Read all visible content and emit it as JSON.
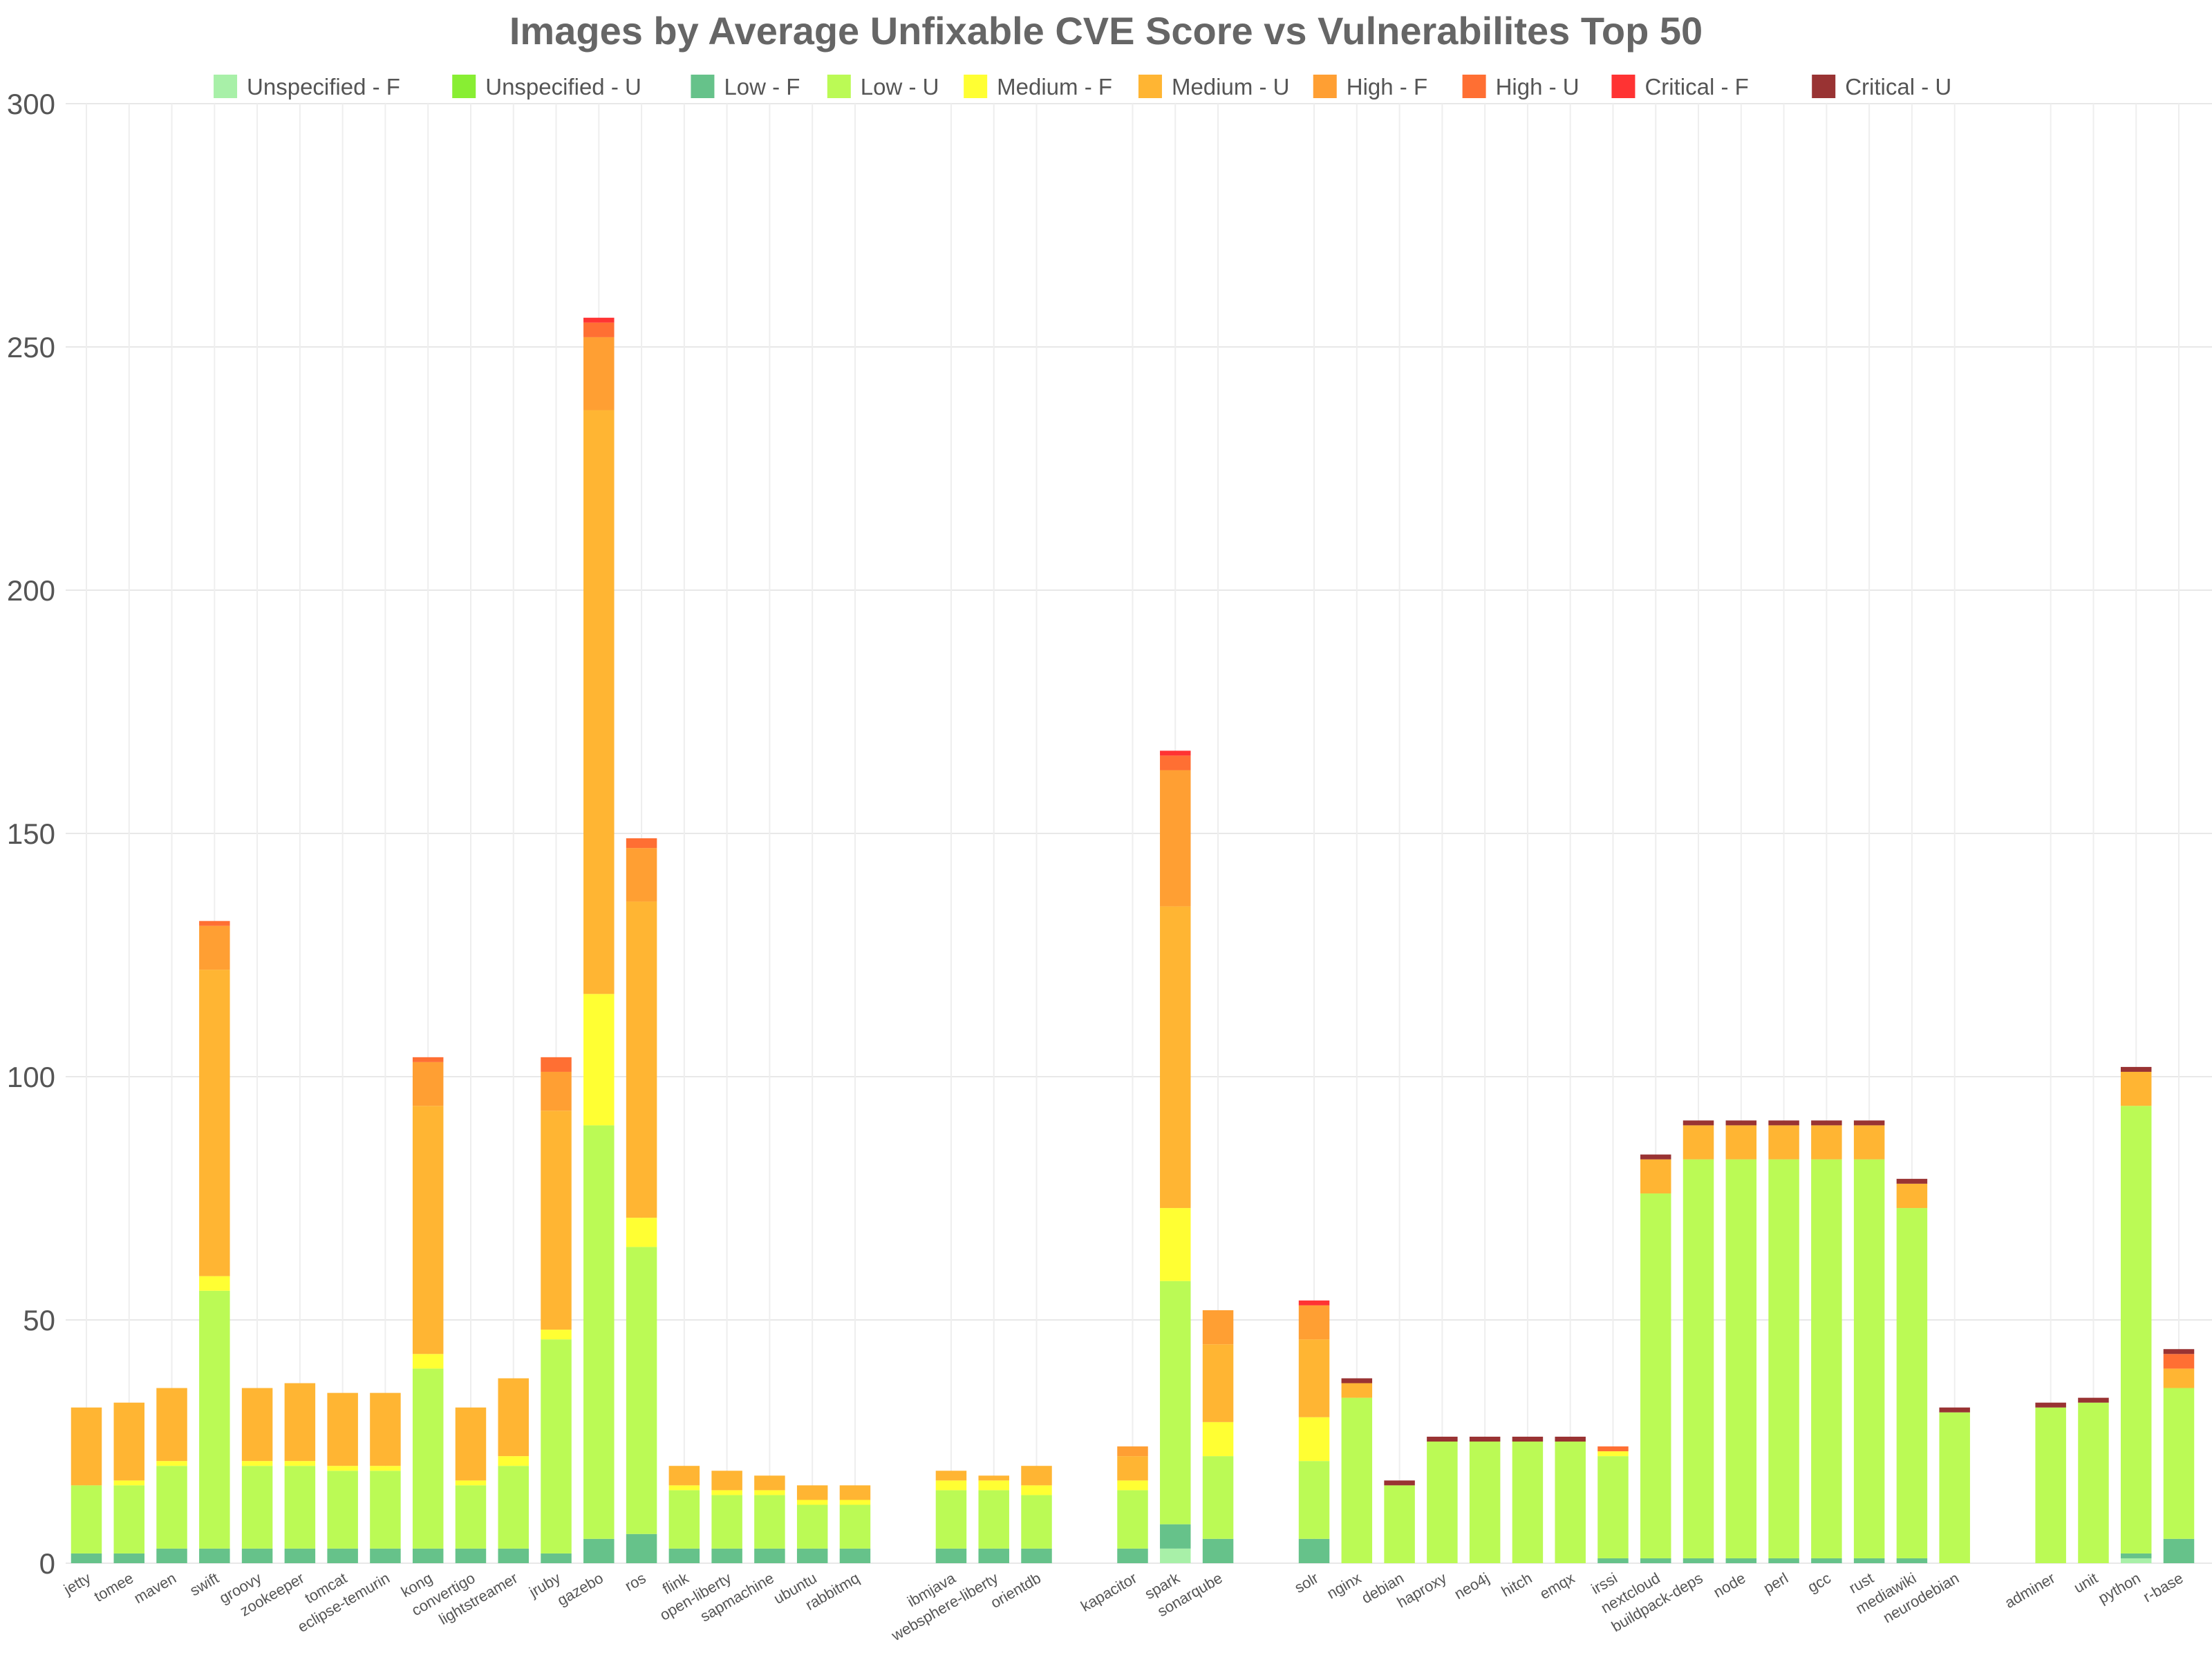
{
  "chart_data": {
    "type": "bar",
    "stacked": true,
    "title": "Images by Average Unfixable CVE Score vs Vulnerabilites Top 50",
    "xlabel": "",
    "ylabel": "",
    "ylim": [
      0,
      300
    ],
    "yticks": [
      0,
      50,
      100,
      150,
      200,
      250,
      300
    ],
    "grid": true,
    "legend_position": "top",
    "series_meta": [
      {
        "name": "Unspecified - F",
        "color": "#a8f0a8"
      },
      {
        "name": "Unspecified - U",
        "color": "#88ee33"
      },
      {
        "name": "Low - F",
        "color": "#66c28a"
      },
      {
        "name": "Low - U",
        "color": "#bbfa55"
      },
      {
        "name": "Medium - F",
        "color": "#ffff33"
      },
      {
        "name": "Medium - U",
        "color": "#ffb533"
      },
      {
        "name": "High - F",
        "color": "#ff9f33"
      },
      {
        "name": "High - U",
        "color": "#ff6f33"
      },
      {
        "name": "Critical - F",
        "color": "#ff3333"
      },
      {
        "name": "Critical - U",
        "color": "#993333"
      }
    ],
    "groups": [
      {
        "categories": [
          "jetty",
          "tomee",
          "maven",
          "swift",
          "groovy",
          "zookeeper",
          "tomcat",
          "eclipse-temurin",
          "kong",
          "convertigo",
          "lightstreamer",
          "jruby",
          "gazebo",
          "ros",
          "flink",
          "open-liberty",
          "sapmachine",
          "ubuntu",
          "rabbitmq"
        ]
      },
      {
        "categories": [
          "ibmjava",
          "websphere-liberty",
          "orientdb"
        ]
      },
      {
        "categories": [
          "kapacitor",
          "spark",
          "sonarqube"
        ]
      },
      {
        "categories": [
          "solr",
          "nginx",
          "debian",
          "haproxy",
          "neo4j",
          "hitch",
          "emqx",
          "irssi",
          "nextcloud",
          "buildpack-deps",
          "node",
          "perl",
          "gcc",
          "rust",
          "mediawiki",
          "neurodebian"
        ]
      },
      {
        "categories": [
          "adminer",
          "unit",
          "python",
          "r-base"
        ]
      }
    ],
    "series": [
      {
        "name": "Unspecified - F",
        "values": [
          0,
          0,
          0,
          0,
          0,
          0,
          0,
          0,
          0,
          0,
          0,
          0,
          0,
          0,
          0,
          0,
          0,
          0,
          0,
          0,
          0,
          0,
          0,
          3,
          0,
          0,
          0,
          0,
          0,
          0,
          0,
          0,
          0,
          0,
          0,
          0,
          0,
          0,
          0,
          0,
          0,
          0,
          0,
          1,
          0
        ]
      },
      {
        "name": "Unspecified - U",
        "values": [
          0,
          0,
          0,
          0,
          0,
          0,
          0,
          0,
          0,
          0,
          0,
          0,
          0,
          0,
          0,
          0,
          0,
          0,
          0,
          0,
          0,
          0,
          0,
          0,
          0,
          0,
          0,
          0,
          0,
          0,
          0,
          0,
          0,
          0,
          0,
          0,
          0,
          0,
          0,
          0,
          0,
          0,
          0,
          0,
          0
        ]
      },
      {
        "name": "Low - F",
        "values": [
          2,
          2,
          3,
          3,
          3,
          3,
          3,
          3,
          3,
          3,
          3,
          2,
          5,
          6,
          3,
          3,
          3,
          3,
          3,
          3,
          3,
          3,
          3,
          5,
          5,
          5,
          0,
          0,
          0,
          0,
          0,
          0,
          1,
          1,
          1,
          1,
          1,
          1,
          1,
          1,
          0,
          0,
          0,
          1,
          5
        ]
      },
      {
        "name": "Low - U",
        "values": [
          14,
          14,
          17,
          53,
          17,
          17,
          16,
          16,
          37,
          13,
          17,
          44,
          85,
          59,
          12,
          11,
          11,
          9,
          9,
          12,
          12,
          11,
          12,
          50,
          17,
          16,
          34,
          16,
          25,
          25,
          25,
          25,
          21,
          75,
          82,
          82,
          82,
          82,
          82,
          72,
          31,
          32,
          33,
          92,
          31
        ]
      },
      {
        "name": "Medium - F",
        "values": [
          0,
          1,
          1,
          3,
          1,
          1,
          1,
          1,
          3,
          1,
          2,
          2,
          27,
          6,
          1,
          1,
          1,
          1,
          1,
          2,
          2,
          2,
          2,
          15,
          7,
          9,
          0,
          0,
          0,
          0,
          0,
          0,
          1,
          0,
          0,
          0,
          0,
          0,
          0,
          0,
          0,
          0,
          0,
          0,
          0
        ]
      },
      {
        "name": "Medium - U",
        "values": [
          16,
          16,
          15,
          63,
          15,
          16,
          15,
          15,
          51,
          15,
          16,
          45,
          120,
          65,
          4,
          4,
          3,
          3,
          3,
          2,
          1,
          4,
          5,
          62,
          16,
          16,
          3,
          0,
          0,
          0,
          0,
          0,
          0,
          7,
          7,
          7,
          7,
          7,
          7,
          5,
          0,
          0,
          0,
          7,
          4
        ]
      },
      {
        "name": "High - F",
        "values": [
          0,
          0,
          0,
          9,
          0,
          0,
          0,
          0,
          9,
          0,
          0,
          8,
          15,
          11,
          0,
          0,
          0,
          0,
          0,
          0,
          0,
          0,
          2,
          28,
          7,
          7,
          0,
          0,
          0,
          0,
          0,
          0,
          0,
          0,
          0,
          0,
          0,
          0,
          0,
          0,
          0,
          0,
          0,
          0,
          0
        ]
      },
      {
        "name": "High - U",
        "values": [
          0,
          0,
          0,
          1,
          0,
          0,
          0,
          0,
          1,
          0,
          0,
          3,
          3,
          2,
          0,
          0,
          0,
          0,
          0,
          0,
          0,
          0,
          0,
          3,
          0,
          0,
          0,
          0,
          0,
          0,
          0,
          0,
          1,
          0,
          0,
          0,
          0,
          0,
          0,
          0,
          0,
          0,
          0,
          0,
          3
        ]
      },
      {
        "name": "Critical - F",
        "values": [
          0,
          0,
          0,
          0,
          0,
          0,
          0,
          0,
          0,
          0,
          0,
          0,
          1,
          0,
          0,
          0,
          0,
          0,
          0,
          0,
          0,
          0,
          0,
          1,
          0,
          1,
          0,
          0,
          0,
          0,
          0,
          0,
          0,
          0,
          0,
          0,
          0,
          0,
          0,
          0,
          0,
          0,
          0,
          0,
          0
        ]
      },
      {
        "name": "Critical - U",
        "values": [
          0,
          0,
          0,
          0,
          0,
          0,
          0,
          0,
          0,
          0,
          0,
          0,
          0,
          0,
          0,
          0,
          0,
          0,
          0,
          0,
          0,
          0,
          0,
          0,
          0,
          0,
          1,
          1,
          1,
          1,
          1,
          1,
          0,
          1,
          1,
          1,
          1,
          1,
          1,
          1,
          1,
          1,
          1,
          1,
          1
        ]
      }
    ]
  }
}
